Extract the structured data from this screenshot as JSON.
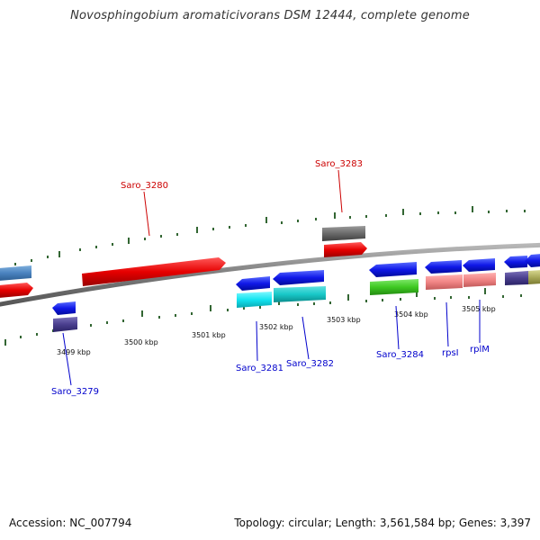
{
  "header": {
    "title": "Novosphingobium aromaticivorans DSM 12444, complete genome"
  },
  "footer": {
    "accession": "Accession: NC_007794",
    "summary": "Topology: circular; Length: 3,561,584 bp; Genes: 3,397"
  },
  "scale": {
    "ticks": [
      {
        "label": "3499 kbp"
      },
      {
        "label": "3500 kbp"
      },
      {
        "label": "3501 kbp"
      },
      {
        "label": "3502 kbp"
      },
      {
        "label": "3503 kbp"
      },
      {
        "label": "3504 kbp"
      },
      {
        "label": "3505 kbp"
      }
    ]
  },
  "genes": [
    {
      "label": "Saro_3280",
      "color": "#cc0000"
    },
    {
      "label": "Saro_3283",
      "color": "#cc0000"
    },
    {
      "label": "Saro_3279",
      "color": "#0000cc"
    },
    {
      "label": "Saro_3281",
      "color": "#0000cc"
    },
    {
      "label": "Saro_3282",
      "color": "#0000cc"
    },
    {
      "label": "Saro_3284",
      "color": "#0000cc"
    },
    {
      "label": "rpsI",
      "color": "#0000cc"
    },
    {
      "label": "rplM",
      "color": "#0000cc"
    }
  ],
  "colors": {
    "backbone": "#888888",
    "tick": "#336633",
    "forward_gene": "#ee1111",
    "reverse_gene": "#1122ee"
  }
}
